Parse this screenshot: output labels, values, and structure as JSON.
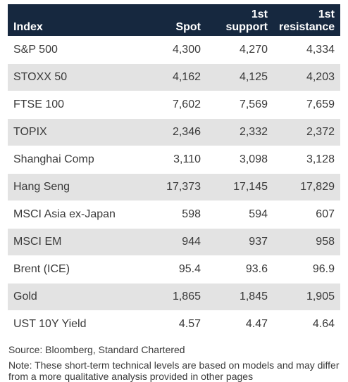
{
  "table": {
    "headers": [
      "Index",
      "Spot",
      "1st\nsupport",
      "1st\nresistance"
    ],
    "rows": [
      [
        "S&P 500",
        "4,300",
        "4,270",
        "4,334"
      ],
      [
        "STOXX 50",
        "4,162",
        "4,125",
        "4,203"
      ],
      [
        "FTSE 100",
        "7,602",
        "7,569",
        "7,659"
      ],
      [
        "TOPIX",
        "2,346",
        "2,332",
        "2,372"
      ],
      [
        "Shanghai Comp",
        "3,110",
        "3,098",
        "3,128"
      ],
      [
        "Hang Seng",
        "17,373",
        "17,145",
        "17,829"
      ],
      [
        "MSCI Asia ex-Japan",
        "598",
        "594",
        "607"
      ],
      [
        "MSCI EM",
        "944",
        "937",
        "958"
      ],
      [
        "Brent (ICE)",
        "95.4",
        "93.6",
        "96.9"
      ],
      [
        "Gold",
        "1,865",
        "1,845",
        "1,905"
      ],
      [
        "UST 10Y Yield",
        "4.57",
        "4.47",
        "4.64"
      ]
    ]
  },
  "footer": {
    "source": "Source: Bloomberg, Standard Chartered",
    "note": "Note: These short-term technical levels are based on models and may differ from a more qualitative analysis provided in other pages"
  },
  "colors": {
    "header_bg": "#16283f",
    "band_bg": "#e3e3e3",
    "text": "#3a3a3a"
  }
}
